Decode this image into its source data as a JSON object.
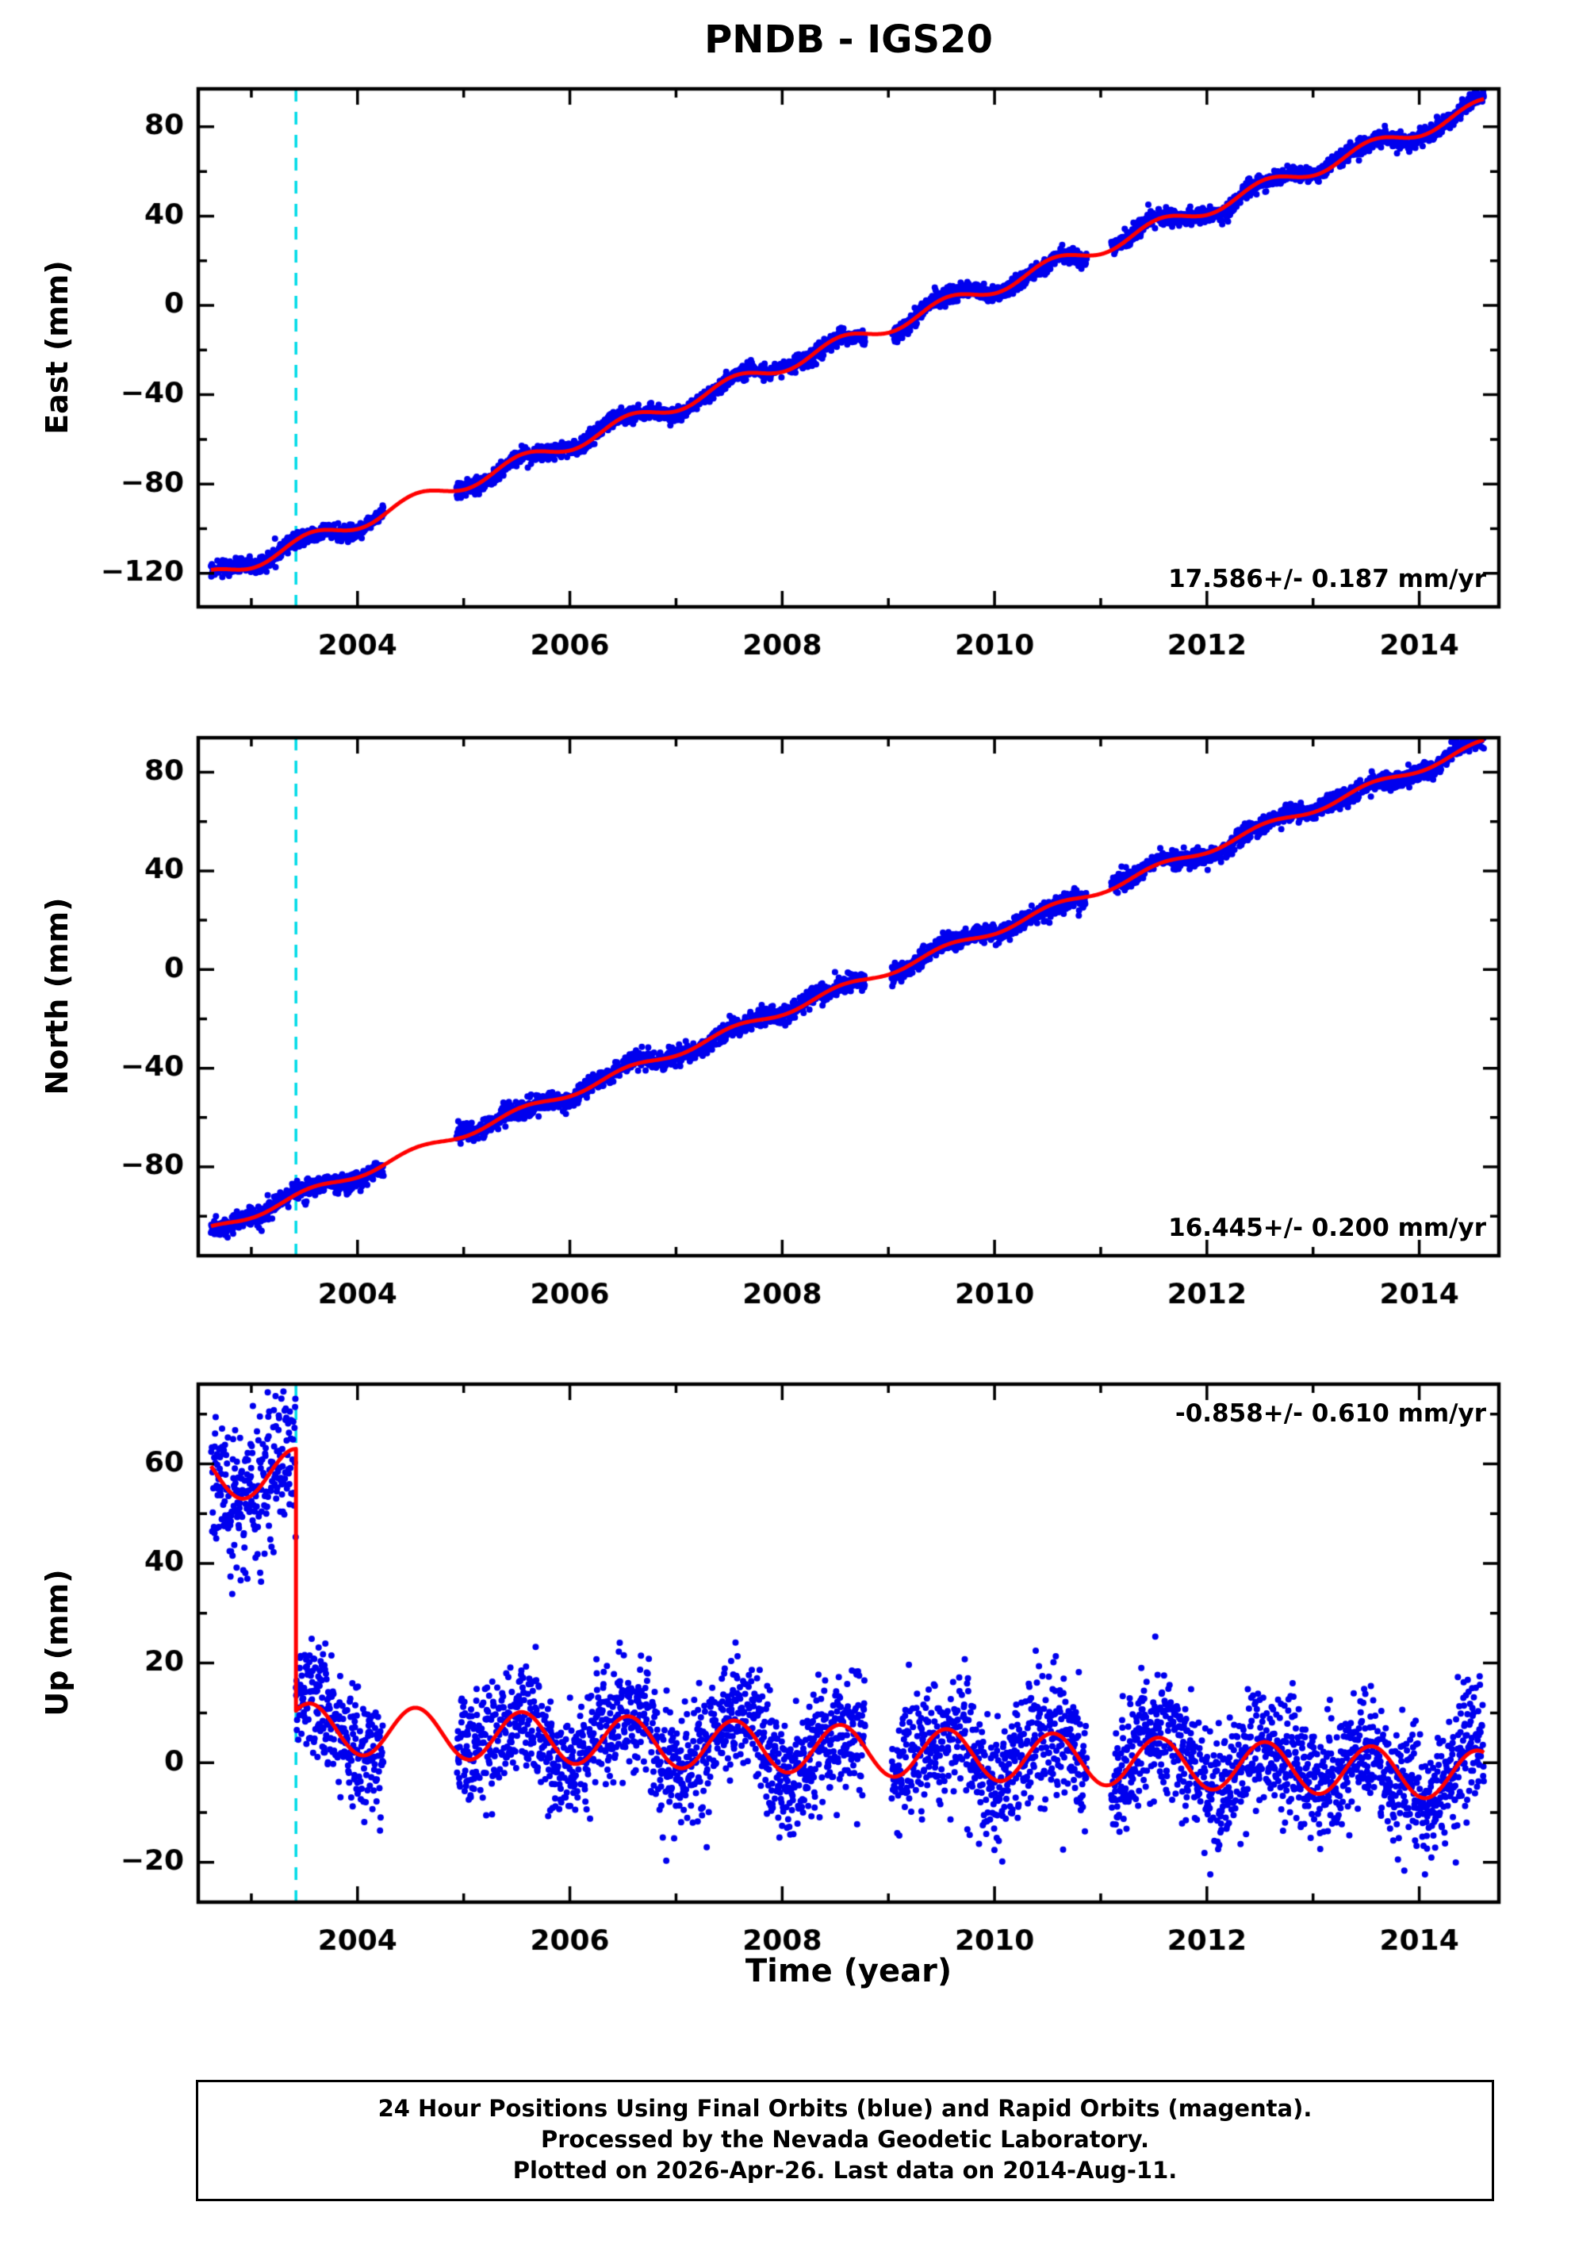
{
  "page": {
    "title": "PNDB - IGS20",
    "xlabel": "Time (year)"
  },
  "footer": {
    "line1": "24 Hour Positions Using Final Orbits (blue) and Rapid Orbits (magenta).",
    "line2": "Processed by the Nevada Geodetic Laboratory.",
    "line3": "Plotted on 2026-Apr-26. Last data on 2014-Aug-11."
  },
  "chart_data": [
    {
      "type": "scatter",
      "name": "east",
      "ylabel": "East (mm)",
      "rate_label": "17.586+/- 0.187 mm/yr",
      "rate_label_position": "bottom-right",
      "xlim": [
        2002.5,
        2014.75
      ],
      "ylim": [
        -135,
        97
      ],
      "xticks": {
        "major": [
          2004,
          2006,
          2008,
          2010,
          2012,
          2014
        ],
        "minor": [
          2003,
          2005,
          2007,
          2009,
          2011,
          2013
        ]
      },
      "yticks": {
        "major": [
          -120,
          -80,
          -40,
          0,
          40,
          80
        ],
        "minor": [
          -100,
          -60,
          -20,
          20,
          60
        ]
      },
      "event_line_x": 2003.42,
      "colors": {
        "points": "#0000ee",
        "model": "#ff0000",
        "event": "#00dbe8"
      },
      "series": {
        "t_start": 2002.62,
        "t_end": 2014.61,
        "step": 0.00274,
        "skip": 0.15,
        "gaps": [
          [
            2004.25,
            2004.93
          ],
          [
            2008.78,
            2009.03
          ],
          [
            2010.87,
            2011.1
          ]
        ],
        "wiggle": [
          1.3,
          1.7,
          0.6,
          0.9,
          0.43,
          2.0
        ],
        "segments": [
          {
            "t0": 2002.62,
            "t1": 2014.61,
            "base": -121.4,
            "rate": 17.586,
            "amp": 3.2,
            "phase": 0.3,
            "noise": 1.8
          }
        ]
      }
    },
    {
      "type": "scatter",
      "name": "north",
      "ylabel": "North (mm)",
      "rate_label": "16.445+/- 0.200 mm/yr",
      "rate_label_position": "bottom-right",
      "xlim": [
        2002.5,
        2014.75
      ],
      "ylim": [
        -116,
        94
      ],
      "xticks": {
        "major": [
          2004,
          2006,
          2008,
          2010,
          2012,
          2014
        ],
        "minor": [
          2003,
          2005,
          2007,
          2009,
          2011,
          2013
        ]
      },
      "yticks": {
        "major": [
          -80,
          -40,
          0,
          40,
          80
        ],
        "minor": [
          -100,
          -60,
          -20,
          20,
          60
        ]
      },
      "event_line_x": 2003.42,
      "colors": {
        "points": "#0000ee",
        "model": "#ff0000",
        "event": "#00dbe8"
      },
      "series": {
        "t_start": 2002.62,
        "t_end": 2014.61,
        "step": 0.00274,
        "skip": 0.15,
        "gaps": [
          [
            2004.25,
            2004.93
          ],
          [
            2008.78,
            2009.03
          ],
          [
            2010.87,
            2011.1
          ]
        ],
        "wiggle": [
          1.2,
          1.6,
          1.1,
          0.9,
          0.41,
          0.4
        ],
        "segments": [
          {
            "t0": 2002.62,
            "t1": 2014.61,
            "base": -105.5,
            "rate": 16.445,
            "amp": 1.6,
            "phase": 0.3,
            "noise": 1.8
          }
        ]
      }
    },
    {
      "type": "scatter",
      "name": "up",
      "ylabel": "Up (mm)",
      "rate_label": "-0.858+/- 0.610 mm/yr",
      "rate_label_position": "top-right",
      "xlim": [
        2002.5,
        2014.75
      ],
      "ylim": [
        -28,
        76
      ],
      "xticks": {
        "major": [
          2004,
          2006,
          2008,
          2010,
          2012,
          2014
        ],
        "minor": [
          2003,
          2005,
          2007,
          2009,
          2011,
          2013
        ]
      },
      "yticks": {
        "major": [
          -20,
          0,
          20,
          40,
          60
        ],
        "minor": [
          -10,
          10,
          30,
          50,
          70
        ]
      },
      "event_line_x": 2003.42,
      "colors": {
        "points": "#0000ee",
        "model": "#ff0000",
        "event": "#00dbe8"
      },
      "series": {
        "t_start": 2002.62,
        "t_end": 2014.61,
        "step": 0.00274,
        "skip": 0.1,
        "gaps": [
          [
            2004.25,
            2004.93
          ],
          [
            2008.78,
            2009.03
          ],
          [
            2010.87,
            2011.1
          ]
        ],
        "wiggle": [
          1.5,
          1.35,
          0.5,
          1.2,
          0.52,
          1.8
        ],
        "segments": [
          {
            "t0": 2002.62,
            "t1": 2003.42,
            "base": 58.0,
            "rate": 0.0,
            "amp": 5.0,
            "phase": 0.17,
            "noise": 6.5
          },
          {
            "t0": 2003.42,
            "t1": 2014.61,
            "base": 7.0,
            "rate": -0.858,
            "amp": 5.0,
            "phase": 0.3,
            "noise": 6.0
          }
        ]
      }
    }
  ]
}
